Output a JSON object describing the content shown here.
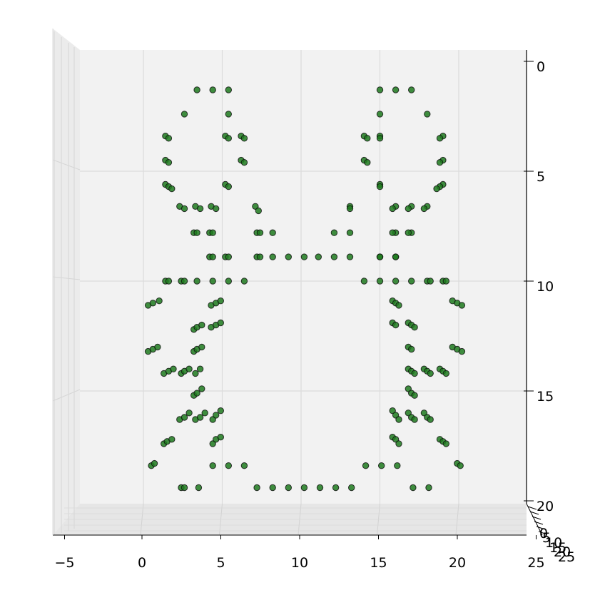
{
  "chart_data": {
    "type": "scatter",
    "title": "",
    "xlabel": "",
    "ylabel": "",
    "zlabel": "",
    "grid": true,
    "xlim": [
      -5.6,
      24.5
    ],
    "ylim": [
      0,
      20
    ],
    "zlim": [
      0,
      25
    ],
    "x_ticks": [
      "−5",
      "0",
      "5",
      "10",
      "15",
      "20",
      "25"
    ],
    "y_ticks": [
      "0",
      "5",
      "10",
      "15",
      "20"
    ],
    "z_ticks": [
      "0",
      "5",
      "10",
      "15",
      "20",
      "25"
    ],
    "colors": {
      "marker_face": "#1f7a1f",
      "marker_edge": "#0a0a0a",
      "pane": "#f2f2f2",
      "grid": "#dcdcdc"
    },
    "points": [
      [
        3.4,
        1.3
      ],
      [
        4.4,
        1.3
      ],
      [
        5.4,
        1.3
      ],
      [
        2.6,
        2.4
      ],
      [
        5.4,
        2.4
      ],
      [
        1.4,
        3.4
      ],
      [
        1.6,
        3.5
      ],
      [
        5.2,
        3.4
      ],
      [
        5.4,
        3.5
      ],
      [
        6.2,
        3.4
      ],
      [
        6.4,
        3.5
      ],
      [
        1.4,
        4.5
      ],
      [
        1.6,
        4.6
      ],
      [
        6.2,
        4.5
      ],
      [
        6.4,
        4.6
      ],
      [
        1.4,
        5.6
      ],
      [
        1.6,
        5.7
      ],
      [
        1.8,
        5.8
      ],
      [
        5.2,
        5.6
      ],
      [
        5.4,
        5.7
      ],
      [
        2.3,
        6.6
      ],
      [
        2.6,
        6.7
      ],
      [
        3.3,
        6.6
      ],
      [
        3.6,
        6.7
      ],
      [
        4.3,
        6.6
      ],
      [
        4.6,
        6.7
      ],
      [
        7.1,
        6.6
      ],
      [
        7.3,
        6.8
      ],
      [
        3.2,
        7.8
      ],
      [
        3.4,
        7.8
      ],
      [
        4.2,
        7.8
      ],
      [
        4.4,
        7.8
      ],
      [
        7.2,
        7.8
      ],
      [
        7.4,
        7.8
      ],
      [
        8.2,
        7.8
      ],
      [
        4.2,
        8.9
      ],
      [
        4.4,
        8.9
      ],
      [
        5.2,
        8.9
      ],
      [
        5.4,
        8.9
      ],
      [
        7.2,
        8.9
      ],
      [
        7.4,
        8.9
      ],
      [
        8.2,
        8.9
      ],
      [
        9.2,
        8.9
      ],
      [
        10.2,
        8.9
      ],
      [
        1.4,
        10.0
      ],
      [
        1.6,
        10.0
      ],
      [
        2.4,
        10.0
      ],
      [
        2.6,
        10.0
      ],
      [
        3.4,
        10.0
      ],
      [
        4.4,
        10.0
      ],
      [
        5.4,
        10.0
      ],
      [
        6.4,
        10.0
      ],
      [
        0.3,
        11.1
      ],
      [
        0.6,
        11.0
      ],
      [
        1.0,
        10.9
      ],
      [
        4.3,
        11.1
      ],
      [
        4.6,
        11.0
      ],
      [
        4.9,
        10.9
      ],
      [
        3.2,
        12.2
      ],
      [
        3.4,
        12.1
      ],
      [
        3.7,
        12.0
      ],
      [
        4.3,
        12.1
      ],
      [
        4.6,
        12.0
      ],
      [
        4.9,
        11.9
      ],
      [
        0.3,
        13.2
      ],
      [
        0.6,
        13.1
      ],
      [
        0.9,
        13.0
      ],
      [
        3.2,
        13.2
      ],
      [
        3.4,
        13.1
      ],
      [
        3.7,
        13.0
      ],
      [
        1.3,
        14.2
      ],
      [
        1.6,
        14.1
      ],
      [
        1.9,
        14.0
      ],
      [
        2.4,
        14.2
      ],
      [
        2.6,
        14.1
      ],
      [
        2.9,
        14.0
      ],
      [
        3.3,
        14.2
      ],
      [
        3.6,
        14.0
      ],
      [
        3.2,
        15.2
      ],
      [
        3.4,
        15.1
      ],
      [
        3.7,
        14.9
      ],
      [
        2.3,
        16.3
      ],
      [
        2.6,
        16.2
      ],
      [
        2.9,
        16.0
      ],
      [
        3.3,
        16.3
      ],
      [
        3.6,
        16.2
      ],
      [
        3.9,
        16.0
      ],
      [
        4.4,
        16.3
      ],
      [
        4.6,
        16.1
      ],
      [
        4.9,
        15.9
      ],
      [
        1.3,
        17.4
      ],
      [
        1.5,
        17.3
      ],
      [
        1.8,
        17.2
      ],
      [
        4.4,
        17.4
      ],
      [
        4.6,
        17.2
      ],
      [
        4.9,
        17.1
      ],
      [
        0.5,
        18.4
      ],
      [
        0.7,
        18.3
      ],
      [
        4.4,
        18.4
      ],
      [
        5.4,
        18.4
      ],
      [
        6.4,
        18.4
      ],
      [
        2.4,
        19.4
      ],
      [
        2.6,
        19.4
      ],
      [
        3.5,
        19.4
      ],
      [
        7.2,
        19.4
      ],
      [
        8.2,
        19.4
      ],
      [
        9.2,
        19.4
      ],
      [
        10.2,
        19.4
      ],
      [
        11.2,
        19.4
      ],
      [
        12.2,
        19.4
      ],
      [
        13.2,
        19.4
      ],
      [
        15.0,
        1.3
      ],
      [
        16.0,
        1.3
      ],
      [
        17.0,
        1.3
      ],
      [
        15.0,
        2.4
      ],
      [
        18.0,
        2.4
      ],
      [
        14.0,
        3.4
      ],
      [
        14.2,
        3.5
      ],
      [
        15.0,
        3.4
      ],
      [
        15.0,
        3.5
      ],
      [
        19.0,
        3.4
      ],
      [
        18.8,
        3.5
      ],
      [
        14.0,
        4.5
      ],
      [
        14.2,
        4.6
      ],
      [
        19.0,
        4.5
      ],
      [
        18.8,
        4.6
      ],
      [
        15.0,
        5.6
      ],
      [
        15.0,
        5.7
      ],
      [
        19.0,
        5.6
      ],
      [
        18.8,
        5.7
      ],
      [
        18.6,
        5.8
      ],
      [
        13.1,
        6.6
      ],
      [
        13.1,
        6.7
      ],
      [
        16.0,
        6.6
      ],
      [
        15.8,
        6.7
      ],
      [
        17.0,
        6.6
      ],
      [
        16.8,
        6.7
      ],
      [
        18.0,
        6.6
      ],
      [
        17.8,
        6.7
      ],
      [
        12.1,
        7.8
      ],
      [
        13.1,
        7.8
      ],
      [
        16.0,
        7.8
      ],
      [
        15.8,
        7.8
      ],
      [
        17.0,
        7.8
      ],
      [
        16.8,
        7.8
      ],
      [
        11.1,
        8.9
      ],
      [
        12.1,
        8.9
      ],
      [
        13.1,
        8.9
      ],
      [
        15.0,
        8.9
      ],
      [
        15.0,
        8.9
      ],
      [
        16.0,
        8.9
      ],
      [
        16.0,
        8.9
      ],
      [
        14.0,
        10.0
      ],
      [
        15.0,
        10.0
      ],
      [
        16.0,
        10.0
      ],
      [
        17.0,
        10.0
      ],
      [
        18.0,
        10.0
      ],
      [
        18.2,
        10.0
      ],
      [
        19.0,
        10.0
      ],
      [
        19.2,
        10.0
      ],
      [
        15.8,
        10.9
      ],
      [
        16.0,
        11.0
      ],
      [
        16.2,
        11.1
      ],
      [
        19.6,
        10.9
      ],
      [
        19.9,
        11.0
      ],
      [
        20.2,
        11.1
      ],
      [
        15.8,
        11.9
      ],
      [
        16.0,
        12.0
      ],
      [
        16.8,
        11.9
      ],
      [
        17.0,
        12.0
      ],
      [
        17.2,
        12.1
      ],
      [
        16.8,
        13.0
      ],
      [
        17.0,
        13.1
      ],
      [
        19.6,
        13.0
      ],
      [
        19.9,
        13.1
      ],
      [
        20.2,
        13.2
      ],
      [
        16.8,
        14.0
      ],
      [
        17.0,
        14.1
      ],
      [
        17.2,
        14.2
      ],
      [
        17.8,
        14.0
      ],
      [
        18.0,
        14.1
      ],
      [
        18.2,
        14.2
      ],
      [
        18.8,
        14.0
      ],
      [
        19.0,
        14.1
      ],
      [
        19.2,
        14.2
      ],
      [
        16.8,
        14.9
      ],
      [
        17.0,
        15.1
      ],
      [
        17.2,
        15.2
      ],
      [
        15.8,
        15.9
      ],
      [
        16.0,
        16.1
      ],
      [
        16.2,
        16.3
      ],
      [
        16.8,
        16.0
      ],
      [
        17.0,
        16.2
      ],
      [
        17.2,
        16.3
      ],
      [
        17.8,
        16.0
      ],
      [
        18.0,
        16.2
      ],
      [
        18.2,
        16.3
      ],
      [
        15.8,
        17.1
      ],
      [
        16.0,
        17.2
      ],
      [
        16.2,
        17.4
      ],
      [
        18.8,
        17.2
      ],
      [
        19.0,
        17.3
      ],
      [
        19.2,
        17.4
      ],
      [
        14.1,
        18.4
      ],
      [
        15.1,
        18.4
      ],
      [
        16.1,
        18.4
      ],
      [
        19.9,
        18.3
      ],
      [
        20.1,
        18.4
      ],
      [
        17.1,
        19.4
      ],
      [
        18.1,
        19.4
      ]
    ]
  }
}
